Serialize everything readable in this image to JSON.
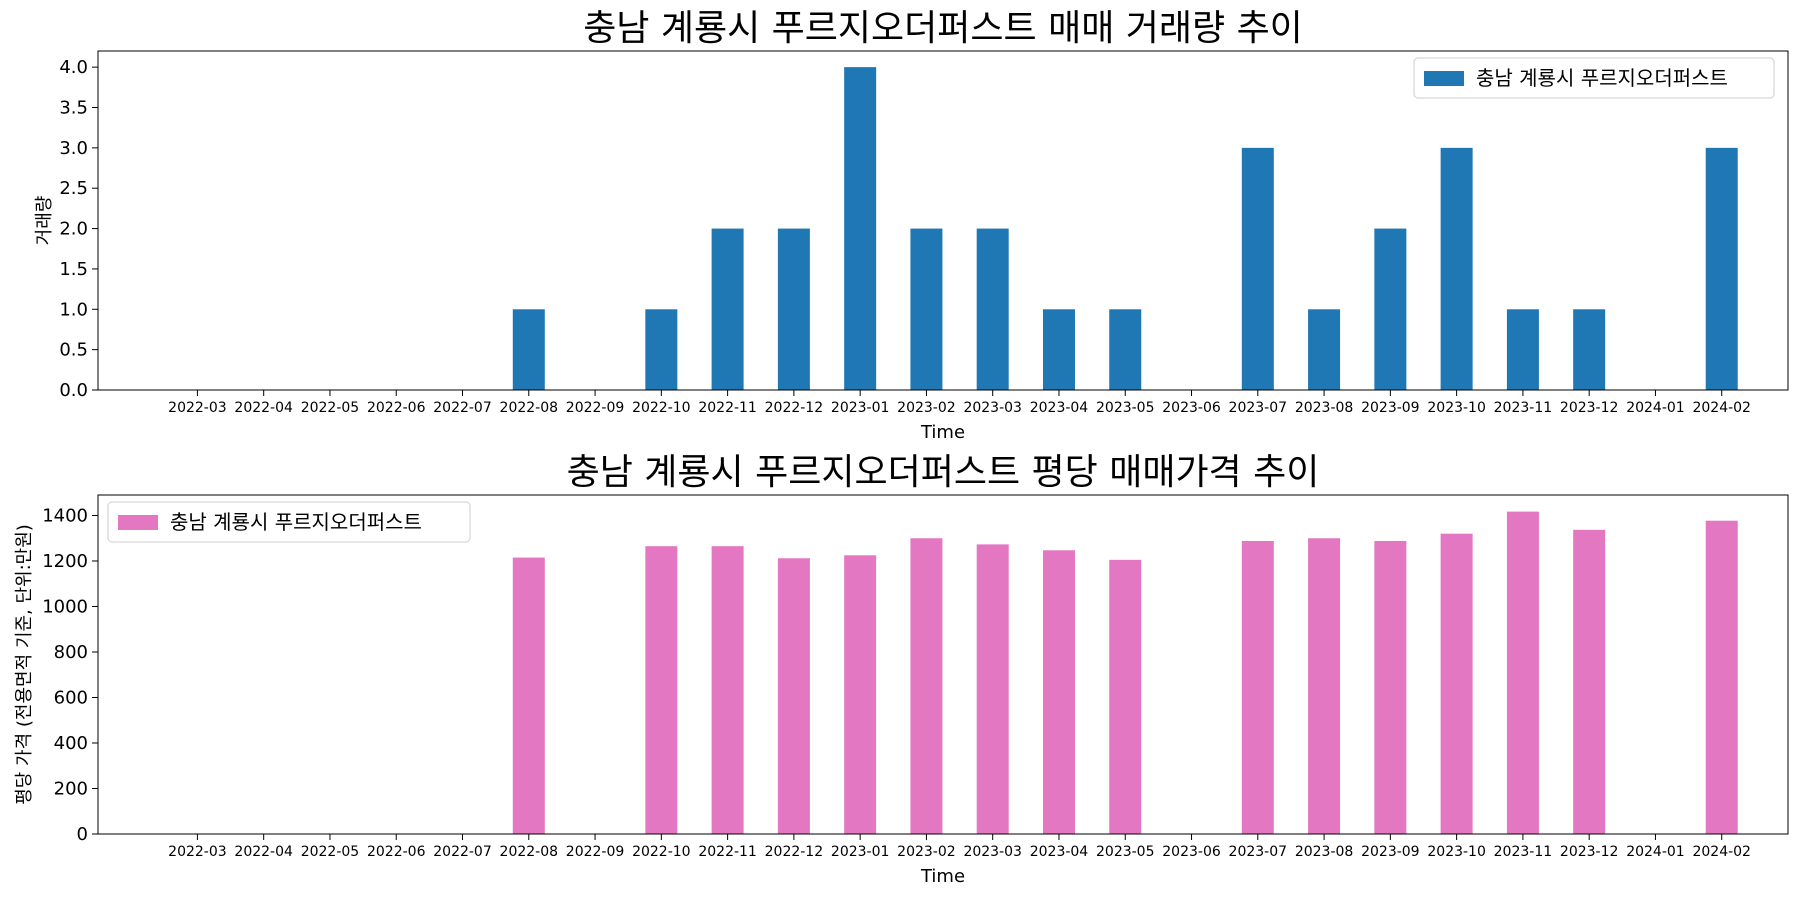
{
  "chart_data": [
    {
      "type": "bar",
      "title": "충남 계룡시 푸르지오더퍼스트 매매 거래량 추이",
      "xlabel": "Time",
      "ylabel": "거래량",
      "categories": [
        "2022-03",
        "2022-04",
        "2022-05",
        "2022-06",
        "2022-07",
        "2022-08",
        "2022-09",
        "2022-10",
        "2022-11",
        "2022-12",
        "2023-01",
        "2023-02",
        "2023-03",
        "2023-04",
        "2023-05",
        "2023-06",
        "2023-07",
        "2023-08",
        "2023-09",
        "2023-10",
        "2023-11",
        "2023-12",
        "2024-01",
        "2024-02"
      ],
      "series": [
        {
          "name": "충남 계룡시 푸르지오더퍼스트",
          "color": "#1f77b4",
          "values": [
            0,
            0,
            0,
            0,
            0,
            1,
            0,
            1,
            2,
            2,
            4,
            2,
            2,
            1,
            1,
            0,
            3,
            1,
            2,
            3,
            1,
            1,
            0,
            3
          ]
        }
      ],
      "ylim": [
        0,
        4.2
      ],
      "yticks": [
        "0.0",
        "0.5",
        "1.0",
        "1.5",
        "2.0",
        "2.5",
        "3.0",
        "3.5",
        "4.0"
      ],
      "legend_position": "top-right",
      "grid": false
    },
    {
      "type": "bar",
      "title": "충남 계룡시 푸르지오더퍼스트 평당 매매가격 추이",
      "xlabel": "Time",
      "ylabel": "평당 가격 (전용면적 기준, 단위:만원)",
      "categories": [
        "2022-03",
        "2022-04",
        "2022-05",
        "2022-06",
        "2022-07",
        "2022-08",
        "2022-09",
        "2022-10",
        "2022-11",
        "2022-12",
        "2023-01",
        "2023-02",
        "2023-03",
        "2023-04",
        "2023-05",
        "2023-06",
        "2023-07",
        "2023-08",
        "2023-09",
        "2023-10",
        "2023-11",
        "2023-12",
        "2024-01",
        "2024-02"
      ],
      "series": [
        {
          "name": "충남 계룡시 푸르지오더퍼스트",
          "color": "#e377c2",
          "values": [
            0,
            0,
            0,
            0,
            0,
            1215,
            0,
            1265,
            1265,
            1212,
            1225,
            1300,
            1273,
            1247,
            1205,
            0,
            1288,
            1300,
            1288,
            1320,
            1417,
            1337,
            0,
            1377
          ]
        }
      ],
      "ylim": [
        0,
        1490
      ],
      "yticks": [
        "0",
        "200",
        "400",
        "600",
        "800",
        "1000",
        "1200",
        "1400"
      ],
      "legend_position": "top-left",
      "grid": false
    }
  ]
}
